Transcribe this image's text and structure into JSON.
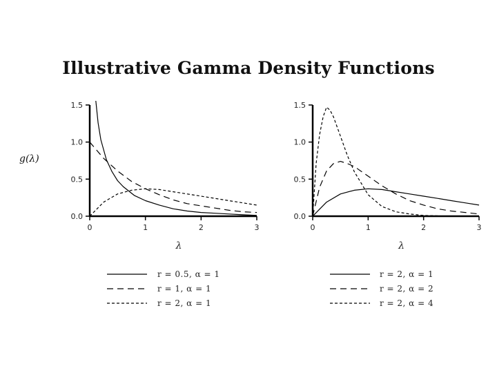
{
  "slide": {
    "title": "Illustrative Gamma Density Functions"
  },
  "chart_data": [
    {
      "type": "line",
      "xlabel": "λ",
      "ylabel": "g(λ)",
      "xlim": [
        0,
        3
      ],
      "ylim": [
        0,
        1.5
      ],
      "x_ticks": [
        "0",
        "1",
        "2",
        "3"
      ],
      "y_ticks": [
        "0.0",
        "0.5",
        "1.0",
        "1.5"
      ],
      "grid": false,
      "legend_position": "bottom",
      "series": [
        {
          "name": "r = 0.5, α = 1",
          "style": "solid",
          "x": [
            0.1,
            0.15,
            0.2,
            0.3,
            0.4,
            0.5,
            0.6,
            0.8,
            1.0,
            1.25,
            1.5,
            1.75,
            2.0,
            2.25,
            2.5,
            2.75,
            3.0
          ],
          "y": [
            1.62,
            1.26,
            1.03,
            0.76,
            0.6,
            0.48,
            0.4,
            0.28,
            0.21,
            0.15,
            0.1,
            0.07,
            0.05,
            0.04,
            0.03,
            0.02,
            0.01
          ]
        },
        {
          "name": "r = 1, α = 1",
          "style": "dashed",
          "x": [
            0.0,
            0.25,
            0.5,
            0.75,
            1.0,
            1.25,
            1.5,
            1.75,
            2.0,
            2.25,
            2.5,
            2.75,
            3.0
          ],
          "y": [
            1.0,
            0.78,
            0.61,
            0.47,
            0.37,
            0.29,
            0.22,
            0.17,
            0.14,
            0.11,
            0.08,
            0.06,
            0.05
          ]
        },
        {
          "name": "r = 2, α = 1",
          "style": "dotted",
          "x": [
            0.0,
            0.25,
            0.5,
            0.75,
            1.0,
            1.25,
            1.5,
            1.75,
            2.0,
            2.25,
            2.5,
            2.75,
            3.0
          ],
          "y": [
            0.0,
            0.19,
            0.3,
            0.35,
            0.37,
            0.36,
            0.33,
            0.3,
            0.27,
            0.24,
            0.21,
            0.18,
            0.15
          ]
        }
      ]
    },
    {
      "type": "line",
      "xlabel": "λ",
      "xlim": [
        0,
        3
      ],
      "ylim": [
        0,
        1.5
      ],
      "x_ticks": [
        "0",
        "1",
        "2",
        "3"
      ],
      "y_ticks": [
        "0.0",
        "0.5",
        "1.0",
        "1.5"
      ],
      "grid": false,
      "legend_position": "bottom",
      "series": [
        {
          "name": "r = 2, α = 1",
          "style": "solid",
          "x": [
            0.0,
            0.25,
            0.5,
            0.75,
            1.0,
            1.25,
            1.5,
            1.75,
            2.0,
            2.25,
            2.5,
            2.75,
            3.0
          ],
          "y": [
            0.0,
            0.19,
            0.3,
            0.35,
            0.37,
            0.36,
            0.33,
            0.3,
            0.27,
            0.24,
            0.21,
            0.18,
            0.15
          ]
        },
        {
          "name": "r = 2, α = 2",
          "style": "dashed",
          "x": [
            0.0,
            0.125,
            0.25,
            0.375,
            0.5,
            0.625,
            0.75,
            1.0,
            1.25,
            1.5,
            1.75,
            2.0,
            2.25,
            2.5,
            2.75,
            3.0
          ],
          "y": [
            0.0,
            0.39,
            0.61,
            0.71,
            0.74,
            0.71,
            0.67,
            0.54,
            0.41,
            0.3,
            0.21,
            0.15,
            0.1,
            0.07,
            0.05,
            0.03
          ],
          "legend_label_note": ""
        },
        {
          "name": "r = 2, α = 4",
          "style": "dotted",
          "x": [
            0.0,
            0.0625,
            0.125,
            0.1875,
            0.25,
            0.3125,
            0.375,
            0.5,
            0.625,
            0.75,
            1.0,
            1.25,
            1.5,
            1.75,
            2.0,
            2.5,
            3.0
          ],
          "y": [
            0.0,
            0.71,
            1.1,
            1.34,
            1.47,
            1.43,
            1.34,
            1.08,
            0.82,
            0.6,
            0.29,
            0.13,
            0.06,
            0.03,
            0.01,
            0.0,
            0.0
          ]
        }
      ]
    }
  ]
}
